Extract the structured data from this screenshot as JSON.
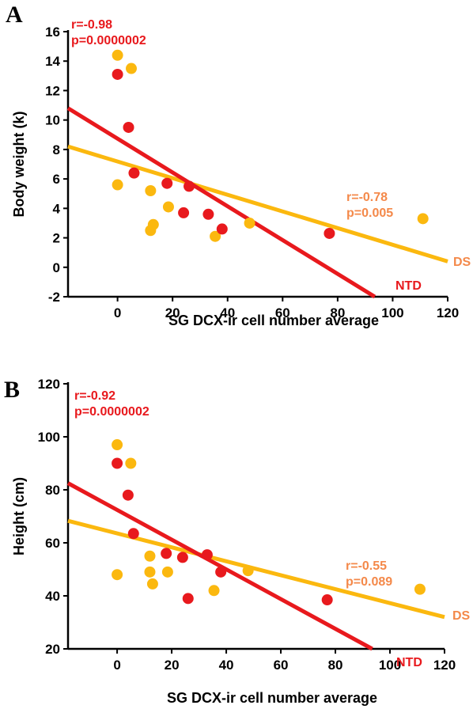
{
  "colors": {
    "NTD": "#e8191d",
    "DS": "#fbb80f",
    "DS_text": "#f4894a"
  },
  "chart_data": [
    {
      "type": "scatter",
      "panel_label": "A",
      "xlabel": "SG DCX-ir cell number average",
      "ylabel": "Body weight (k)",
      "xlim": [
        -18,
        120
      ],
      "ylim": [
        -2,
        16
      ],
      "xticks": [
        0,
        20,
        40,
        60,
        80,
        100,
        120
      ],
      "yticks": [
        -2,
        0,
        2,
        4,
        6,
        8,
        10,
        12,
        14,
        16
      ],
      "series": [
        {
          "name": "NTD",
          "color": "#e8191d",
          "points": [
            [
              0,
              13.1
            ],
            [
              4,
              9.5
            ],
            [
              6,
              6.4
            ],
            [
              18,
              5.7
            ],
            [
              24,
              3.7
            ],
            [
              26,
              5.5
            ],
            [
              33,
              3.6
            ],
            [
              38,
              2.6
            ],
            [
              77,
              2.3
            ]
          ],
          "fit": [
            [
              -18,
              10.8
            ],
            [
              93.5,
              -2
            ]
          ],
          "line_label": "NTD",
          "r_text": "r=-0.98",
          "p_text": "p=0.0000002"
        },
        {
          "name": "DS",
          "color": "#fbb80f",
          "points": [
            [
              0,
              14.4
            ],
            [
              5,
              13.5
            ],
            [
              0,
              5.6
            ],
            [
              12,
              5.2
            ],
            [
              12,
              2.5
            ],
            [
              13,
              2.9
            ],
            [
              18.5,
              4.1
            ],
            [
              35.5,
              2.1
            ],
            [
              48,
              3.0
            ],
            [
              111,
              3.3
            ]
          ],
          "fit": [
            [
              -18,
              8.2
            ],
            [
              120,
              0.4
            ]
          ],
          "line_label": "DS",
          "r_text": "r=-0.78",
          "p_text": "p=0.005"
        }
      ]
    },
    {
      "type": "scatter",
      "panel_label": "B",
      "xlabel": "SG DCX-ir cell number average",
      "ylabel": "Height (cm)",
      "xlim": [
        -18,
        120
      ],
      "ylim": [
        20,
        120
      ],
      "xticks": [
        0,
        20,
        40,
        60,
        80,
        100,
        120
      ],
      "yticks": [
        20,
        40,
        60,
        80,
        100,
        120
      ],
      "series": [
        {
          "name": "NTD",
          "color": "#e8191d",
          "points": [
            [
              0,
              90
            ],
            [
              4,
              78
            ],
            [
              6,
              63.5
            ],
            [
              18,
              56
            ],
            [
              24,
              54.5
            ],
            [
              26,
              39
            ],
            [
              33,
              55.5
            ],
            [
              38,
              49
            ],
            [
              77,
              38.5
            ]
          ],
          "fit": [
            [
              -18,
              82.5
            ],
            [
              93.5,
              20
            ]
          ],
          "line_label": "NTD",
          "r_text": "r=-0.92",
          "p_text": "p=0.0000002"
        },
        {
          "name": "DS",
          "color": "#fbb80f",
          "points": [
            [
              0,
              97
            ],
            [
              5,
              90
            ],
            [
              0,
              48
            ],
            [
              12,
              55
            ],
            [
              12,
              49
            ],
            [
              13,
              44.5
            ],
            [
              18.5,
              49
            ],
            [
              35.5,
              42
            ],
            [
              48,
              49.5
            ],
            [
              111,
              42.5
            ]
          ],
          "fit": [
            [
              -18,
              68.3
            ],
            [
              120,
              32
            ]
          ],
          "line_label": "DS",
          "r_text": "r=-0.55",
          "p_text": "p=0.089"
        }
      ]
    }
  ]
}
